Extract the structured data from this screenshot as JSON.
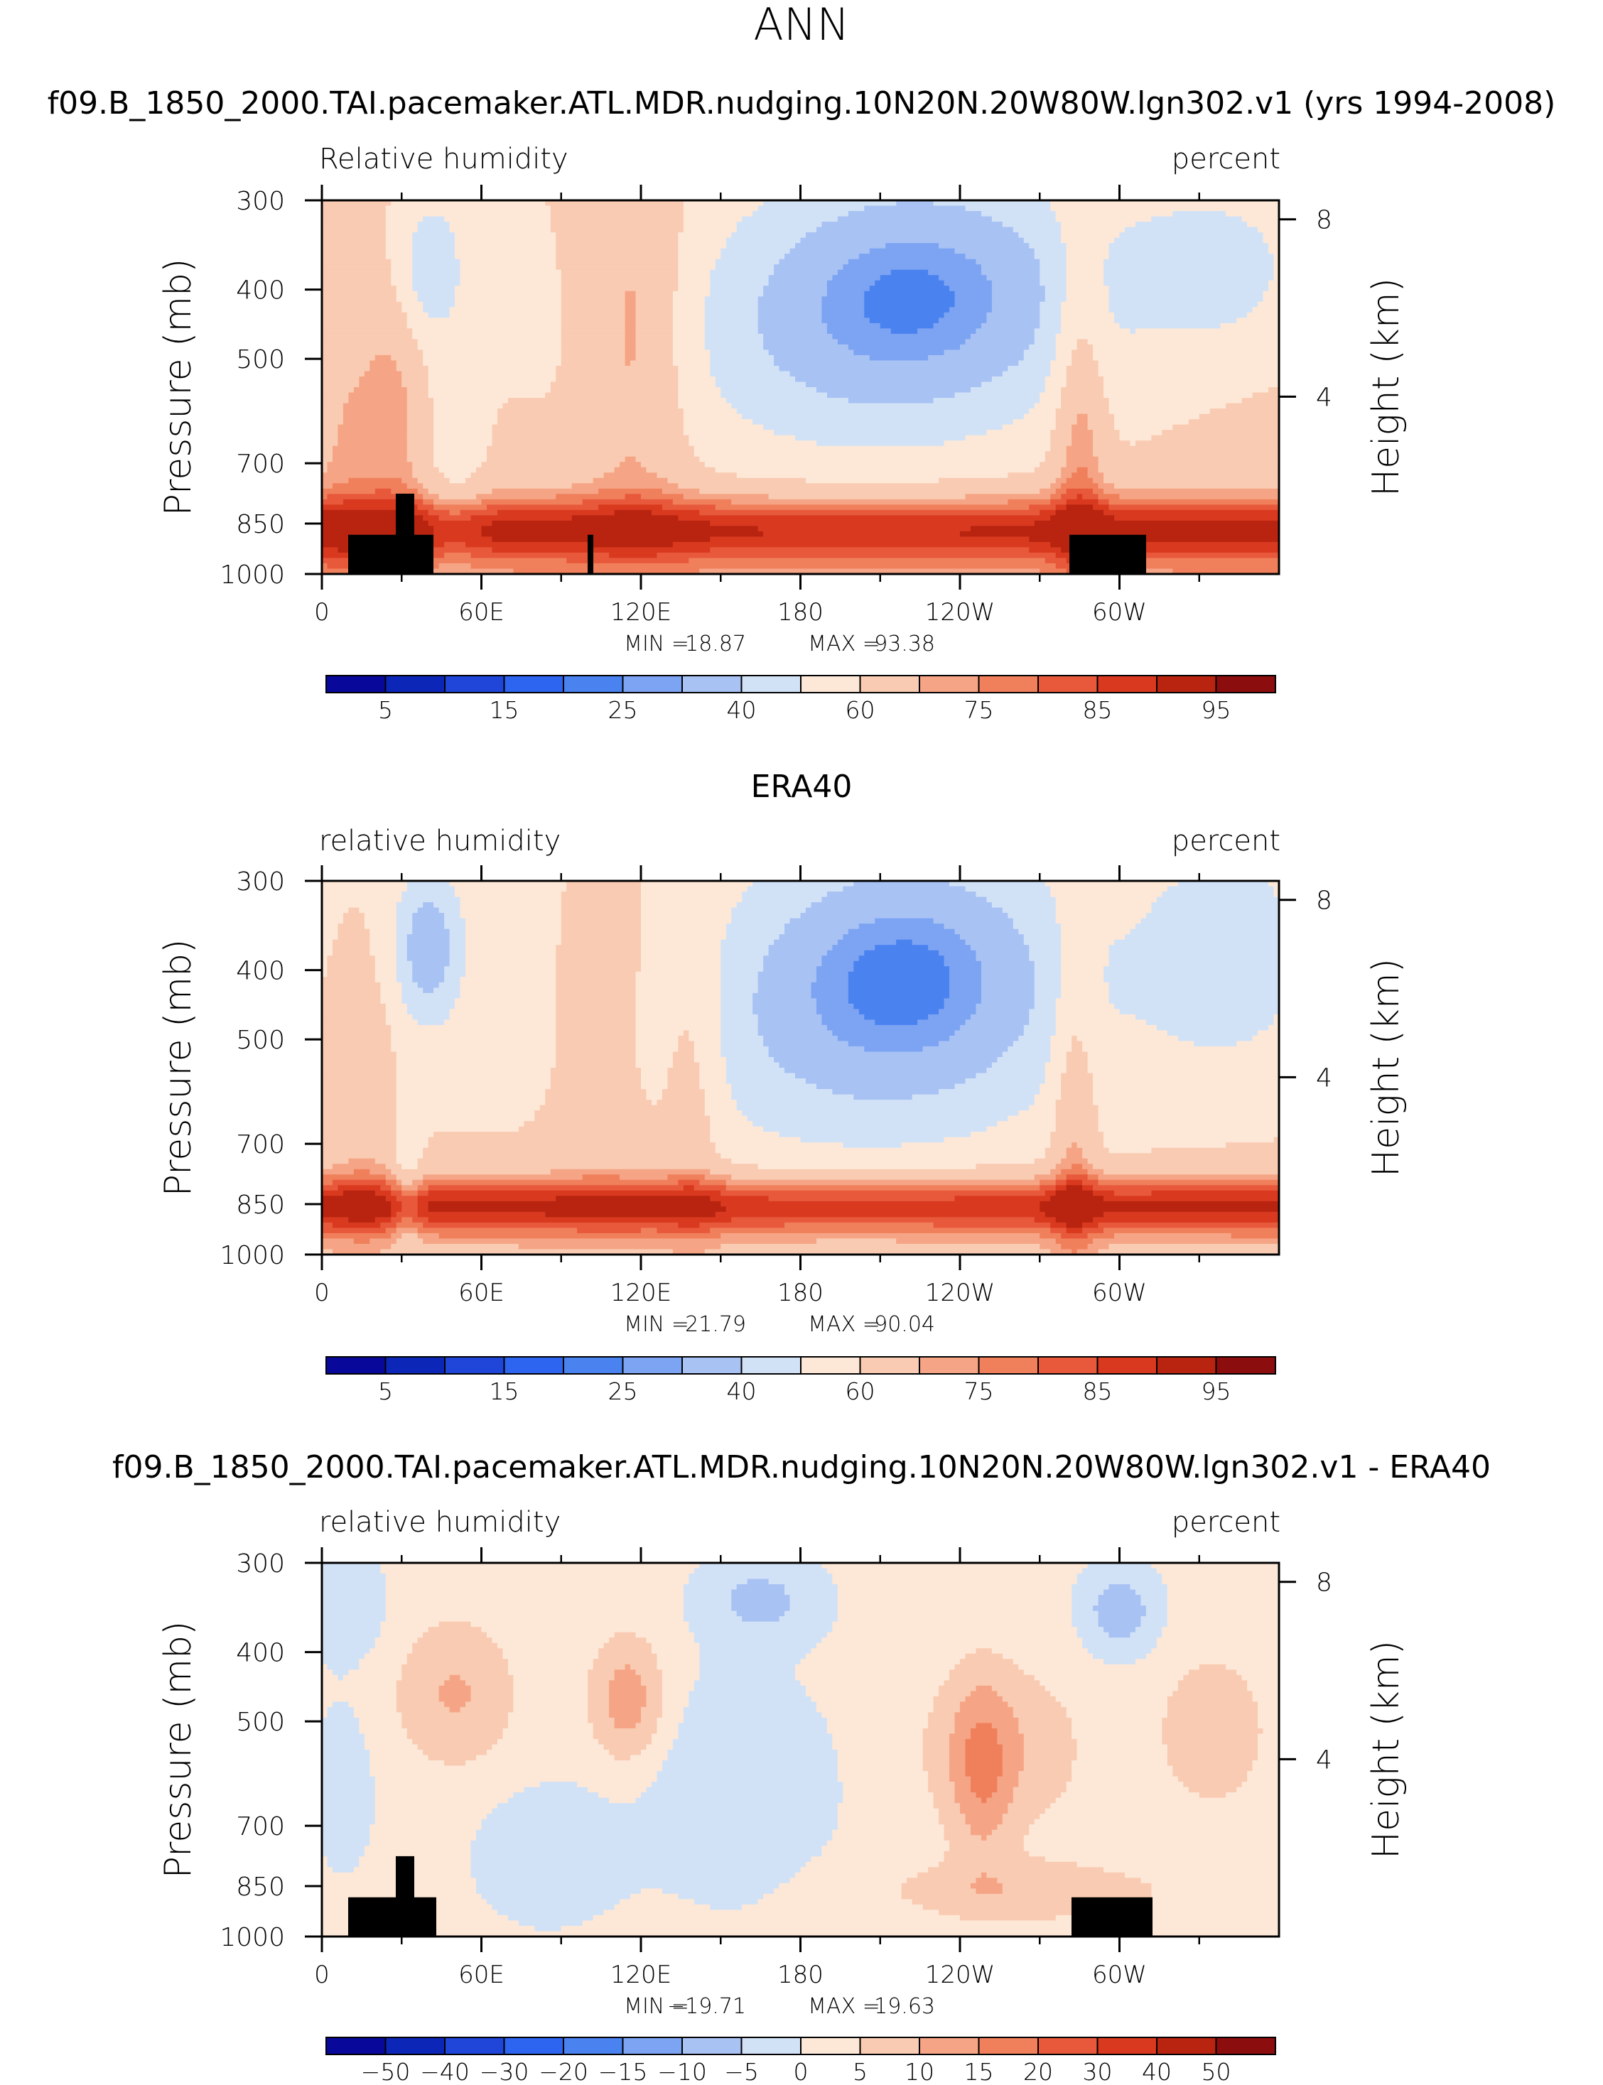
{
  "figure": {
    "title": "ANN"
  },
  "colors": {
    "rh_scale": [
      "#08089a",
      "#0c27b8",
      "#1f46d8",
      "#2d64f0",
      "#4a82ef",
      "#7da4f2",
      "#a8c2f4",
      "#d2e2f6",
      "#fde8d8",
      "#f9cbb2",
      "#f5a586",
      "#f0805c",
      "#e8593b",
      "#d93a1f",
      "#b82410",
      "#8c0d0d"
    ],
    "diff_scale": [
      "#08089a",
      "#0c27b8",
      "#1f46d8",
      "#2d64f0",
      "#4a82ef",
      "#7da4f2",
      "#a8c2f4",
      "#d2e2f6",
      "#fde8d8",
      "#f9cbb2",
      "#f5a586",
      "#f0805c",
      "#e8593b",
      "#d93a1f",
      "#b82410",
      "#8c0d0d"
    ],
    "topography": "#000000"
  },
  "chart_data": [
    {
      "type": "heatmap",
      "title": "f09.B_1850_2000.TAI.pacemaker.ATL.MDR.nudging.10N20N.20W80W.lgn302.v1 (yrs 1994-2008)",
      "left_label": "Relative humidity",
      "right_label": "percent",
      "xlabel": "",
      "ylabel": "Pressure (mb)",
      "y2label": "Height (km)",
      "x_ticks": [
        "0",
        "60E",
        "120E",
        "180",
        "120W",
        "60W"
      ],
      "x_tick_values": [
        0,
        60,
        120,
        180,
        240,
        300
      ],
      "xlim": [
        0,
        360
      ],
      "y_ticks": [
        "300",
        "400",
        "500",
        "700",
        "850",
        "1000"
      ],
      "y_tick_values": [
        300,
        400,
        500,
        700,
        850,
        1000
      ],
      "ylim": [
        1000,
        300
      ],
      "y2_ticks": [
        "8",
        "4"
      ],
      "y2_tick_values": [
        8,
        4
      ],
      "min_label": "MIN =",
      "min_value": "18.87",
      "max_label": "MAX =",
      "max_value": "93.38",
      "colorbar_labels": [
        "5",
        "15",
        "25",
        "40",
        "60",
        "75",
        "85",
        "95"
      ],
      "levels": [
        5,
        10,
        15,
        20,
        25,
        30,
        40,
        50,
        60,
        70,
        75,
        80,
        85,
        90,
        95
      ],
      "field": "model"
    },
    {
      "type": "heatmap",
      "title": "ERA40",
      "left_label": "relative humidity",
      "right_label": "percent",
      "xlabel": "",
      "ylabel": "Pressure (mb)",
      "y2label": "Height (km)",
      "x_ticks": [
        "0",
        "60E",
        "120E",
        "180",
        "120W",
        "60W"
      ],
      "x_tick_values": [
        0,
        60,
        120,
        180,
        240,
        300
      ],
      "xlim": [
        0,
        360
      ],
      "y_ticks": [
        "300",
        "400",
        "500",
        "700",
        "850",
        "1000"
      ],
      "y_tick_values": [
        300,
        400,
        500,
        700,
        850,
        1000
      ],
      "ylim": [
        1000,
        300
      ],
      "y2_ticks": [
        "8",
        "4"
      ],
      "y2_tick_values": [
        8,
        4
      ],
      "min_label": "MIN =",
      "min_value": "21.79",
      "max_label": "MAX =",
      "max_value": "90.04",
      "colorbar_labels": [
        "5",
        "15",
        "25",
        "40",
        "60",
        "75",
        "85",
        "95"
      ],
      "levels": [
        5,
        10,
        15,
        20,
        25,
        30,
        40,
        50,
        60,
        70,
        75,
        80,
        85,
        90,
        95
      ],
      "field": "obs"
    },
    {
      "type": "heatmap",
      "title": "f09.B_1850_2000.TAI.pacemaker.ATL.MDR.nudging.10N20N.20W80W.lgn302.v1 - ERA40",
      "left_label": "relative humidity",
      "right_label": "percent",
      "xlabel": "",
      "ylabel": "Pressure (mb)",
      "y2label": "Height (km)",
      "x_ticks": [
        "0",
        "60E",
        "120E",
        "180",
        "120W",
        "60W"
      ],
      "x_tick_values": [
        0,
        60,
        120,
        180,
        240,
        300
      ],
      "xlim": [
        0,
        360
      ],
      "y_ticks": [
        "300",
        "400",
        "500",
        "700",
        "850",
        "1000"
      ],
      "y_tick_values": [
        300,
        400,
        500,
        700,
        850,
        1000
      ],
      "ylim": [
        1000,
        300
      ],
      "y2_ticks": [
        "8",
        "4"
      ],
      "y2_tick_values": [
        8,
        4
      ],
      "min_label": "MIN =",
      "min_value": "−19.71",
      "max_label": "MAX =",
      "max_value": "19.63",
      "colorbar_labels": [
        "−50",
        "−40",
        "−30",
        "−20",
        "−15",
        "−10",
        "−5",
        "0",
        "5",
        "10",
        "15",
        "20",
        "30",
        "40",
        "50"
      ],
      "levels": [
        -50,
        -40,
        -30,
        -20,
        -15,
        -10,
        -5,
        0,
        5,
        10,
        15,
        20,
        30,
        40,
        50
      ],
      "field": "diff"
    }
  ]
}
